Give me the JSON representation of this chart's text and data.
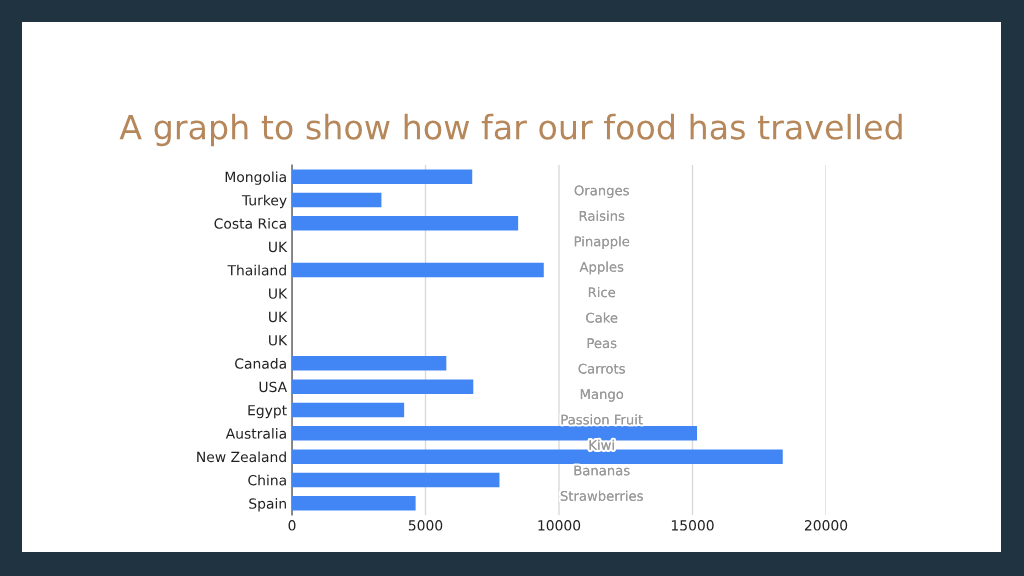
{
  "chart_data": {
    "type": "bar",
    "orientation": "horizontal",
    "title": "A graph to show how far our food has travelled",
    "categories": [
      "Mongolia",
      "Turkey",
      "Costa Rica",
      "UK",
      "Thailand",
      "UK",
      "UK",
      "UK",
      "Canada",
      "USA",
      "Egypt",
      "Australia",
      "New Zealand",
      "China",
      "Spain"
    ],
    "values": [
      6750,
      3350,
      8470,
      0,
      9430,
      0,
      0,
      0,
      5780,
      6790,
      4200,
      15170,
      18380,
      7770,
      4630
    ],
    "color": "#4285f4",
    "xlim": [
      0,
      20000
    ],
    "xticks": [
      0,
      5000,
      10000,
      15000,
      20000
    ],
    "grid": "x",
    "annotations": [
      "Oranges",
      "Raisins",
      "Pinapple",
      "Apples",
      "Rice",
      "Cake",
      "Peas",
      "Carrots",
      "Mango",
      "Passion Fruit",
      "Kiwi",
      "Bananas",
      "Strawberries"
    ]
  }
}
